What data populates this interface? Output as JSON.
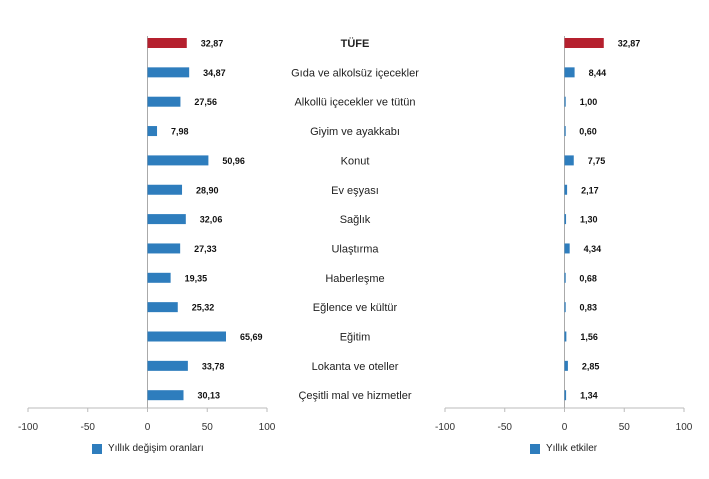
{
  "chart_data": [
    {
      "type": "bar",
      "orientation": "horizontal",
      "categories": [
        "TÜFE",
        "Gıda ve alkolsüz içecekler",
        "Alkollü içecekler ve tütün",
        "Giyim ve ayakkabı",
        "Konut",
        "Ev eşyası",
        "Sağlık",
        "Ulaştırma",
        "Haberleşme",
        "Eğlence ve kültür",
        "Eğitim",
        "Lokanta ve oteller",
        "Çeşitli mal ve hizmetler"
      ],
      "values": [
        32.87,
        34.87,
        27.56,
        7.98,
        50.96,
        28.9,
        32.06,
        27.33,
        19.35,
        25.32,
        65.69,
        33.78,
        30.13
      ],
      "value_labels": [
        "32,87",
        "34,87",
        "27,56",
        "7,98",
        "50,96",
        "28,90",
        "32,06",
        "27,33",
        "19,35",
        "25,32",
        "65,69",
        "33,78",
        "30,13"
      ],
      "xlim": [
        -100,
        100
      ],
      "xticks": [
        "-100",
        "-50",
        "0",
        "50",
        "100"
      ],
      "legend": "Yıllık değişim oranları",
      "colors": {
        "highlight": "#b5202e",
        "bar": "#2e7dbd"
      }
    },
    {
      "type": "bar",
      "orientation": "horizontal",
      "values": [
        32.87,
        8.44,
        1.0,
        0.6,
        7.75,
        2.17,
        1.3,
        4.34,
        0.68,
        0.83,
        1.56,
        2.85,
        1.34
      ],
      "value_labels": [
        "32,87",
        "8,44",
        "1,00",
        "0,60",
        "7,75",
        "2,17",
        "1,30",
        "4,34",
        "0,68",
        "0,83",
        "1,56",
        "2,85",
        "1,34"
      ],
      "xlim": [
        -100,
        100
      ],
      "xticks": [
        "-100",
        "-50",
        "0",
        "50",
        "100"
      ],
      "legend": "Yıllık etkiler",
      "colors": {
        "highlight": "#b5202e",
        "bar": "#2e7dbd"
      }
    }
  ]
}
